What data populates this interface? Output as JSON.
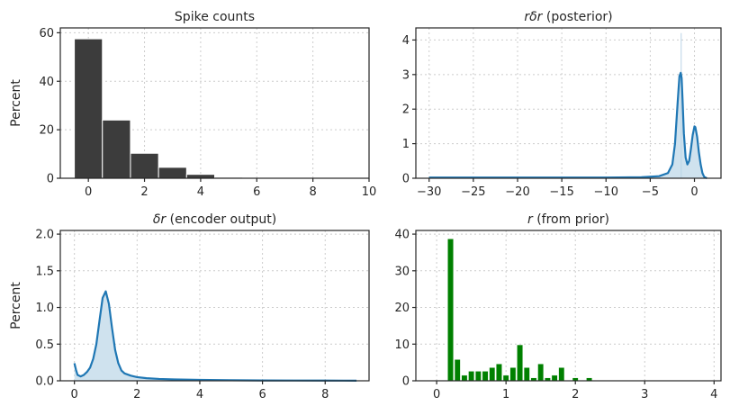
{
  "chart_data": [
    {
      "type": "bar",
      "title": "Spike counts",
      "ylabel": "Percent",
      "xlim": [
        -1,
        10
      ],
      "ylim": [
        0,
        62
      ],
      "xticks": [
        0,
        2,
        4,
        6,
        8,
        10
      ],
      "yticks": [
        0,
        20,
        40,
        60
      ],
      "grid": true,
      "bar_width": 1,
      "bar_color": "#3c3c3c",
      "bars": [
        {
          "x": 0,
          "value": 57.5
        },
        {
          "x": 1,
          "value": 24
        },
        {
          "x": 2,
          "value": 10.3
        },
        {
          "x": 3,
          "value": 4.5
        },
        {
          "x": 4,
          "value": 1.6
        },
        {
          "x": 5,
          "value": 0.4
        },
        {
          "x": 6,
          "value": 0.1
        }
      ]
    },
    {
      "type": "area",
      "title_math": "rδr",
      "title": "(posterior)",
      "ylabel": "",
      "xlim": [
        -31.5,
        3
      ],
      "ylim": [
        0,
        4.35
      ],
      "xticks": [
        -30,
        -25,
        -20,
        -15,
        -10,
        -5,
        0
      ],
      "yticks": [
        0,
        1,
        2,
        3,
        4
      ],
      "tick_labels_x": [
        "−30",
        "−25",
        "−20",
        "−15",
        "−10",
        "−5",
        "0"
      ],
      "grid": true,
      "line_color": "#1f77b4",
      "fill_color": "#cfe2ee",
      "spike_line": {
        "x": -1.5,
        "y": 4.2
      },
      "series": [
        {
          "x": [
            -30,
            -20,
            -10,
            -6,
            -4,
            -3,
            -2.5,
            -2.2,
            -1.9,
            -1.7,
            -1.55,
            -1.45,
            -1.35,
            -1.2,
            -1.0,
            -0.8,
            -0.6,
            -0.4,
            -0.2,
            0,
            0.1,
            0.3,
            0.5,
            0.7,
            0.9,
            1.1,
            1.4
          ],
          "y": [
            0.02,
            0.02,
            0.02,
            0.03,
            0.06,
            0.15,
            0.4,
            1.0,
            2.2,
            2.95,
            3.05,
            2.9,
            2.3,
            1.3,
            0.6,
            0.4,
            0.5,
            0.85,
            1.25,
            1.5,
            1.48,
            1.2,
            0.75,
            0.4,
            0.15,
            0.04,
            0.0
          ]
        }
      ]
    },
    {
      "type": "area",
      "title_math": "δr",
      "title": "(encoder output)",
      "ylabel": "Percent",
      "xlim": [
        -0.45,
        9.4
      ],
      "ylim": [
        0,
        2.05
      ],
      "xticks": [
        0,
        2,
        4,
        6,
        8
      ],
      "yticks": [
        0,
        0.5,
        1.0,
        1.5,
        2.0
      ],
      "tick_labels_y": [
        "0.0",
        "0.5",
        "1.0",
        "1.5",
        "2.0"
      ],
      "grid": true,
      "line_color": "#1f77b4",
      "fill_color": "#cfe2ee",
      "series": [
        {
          "x": [
            0,
            0.05,
            0.1,
            0.2,
            0.3,
            0.4,
            0.5,
            0.6,
            0.7,
            0.8,
            0.9,
            1.0,
            1.1,
            1.2,
            1.3,
            1.4,
            1.5,
            1.6,
            1.8,
            2.0,
            2.3,
            2.7,
            3.2,
            4,
            5,
            6,
            7,
            8,
            9
          ],
          "y": [
            0.24,
            0.15,
            0.08,
            0.06,
            0.08,
            0.12,
            0.18,
            0.3,
            0.5,
            0.82,
            1.13,
            1.22,
            1.05,
            0.72,
            0.42,
            0.24,
            0.14,
            0.1,
            0.07,
            0.05,
            0.035,
            0.025,
            0.018,
            0.012,
            0.008,
            0.005,
            0.004,
            0.003,
            0.002
          ]
        }
      ]
    },
    {
      "type": "bar",
      "title_math": "r",
      "title": "(from prior)",
      "ylabel": "",
      "xlim": [
        -0.3,
        4.1
      ],
      "ylim": [
        0,
        41
      ],
      "xticks": [
        0,
        1,
        2,
        3,
        4
      ],
      "yticks": [
        0,
        10,
        20,
        30,
        40
      ],
      "grid": true,
      "bar_width": 0.082,
      "bar_color": "#008000",
      "bars": [
        {
          "x": 0.2,
          "value": 38.7
        },
        {
          "x": 0.3,
          "value": 5.8
        },
        {
          "x": 0.4,
          "value": 1.5
        },
        {
          "x": 0.5,
          "value": 2.6
        },
        {
          "x": 0.6,
          "value": 2.6
        },
        {
          "x": 0.7,
          "value": 2.6
        },
        {
          "x": 0.8,
          "value": 3.6
        },
        {
          "x": 0.9,
          "value": 4.6
        },
        {
          "x": 1.0,
          "value": 1.5
        },
        {
          "x": 1.1,
          "value": 3.6
        },
        {
          "x": 1.2,
          "value": 9.8
        },
        {
          "x": 1.3,
          "value": 3.6
        },
        {
          "x": 1.4,
          "value": 0.8
        },
        {
          "x": 1.5,
          "value": 4.6
        },
        {
          "x": 1.6,
          "value": 0.8
        },
        {
          "x": 1.7,
          "value": 1.5
        },
        {
          "x": 1.8,
          "value": 3.6
        },
        {
          "x": 2.0,
          "value": 0.8
        },
        {
          "x": 2.2,
          "value": 0.8
        }
      ]
    }
  ]
}
